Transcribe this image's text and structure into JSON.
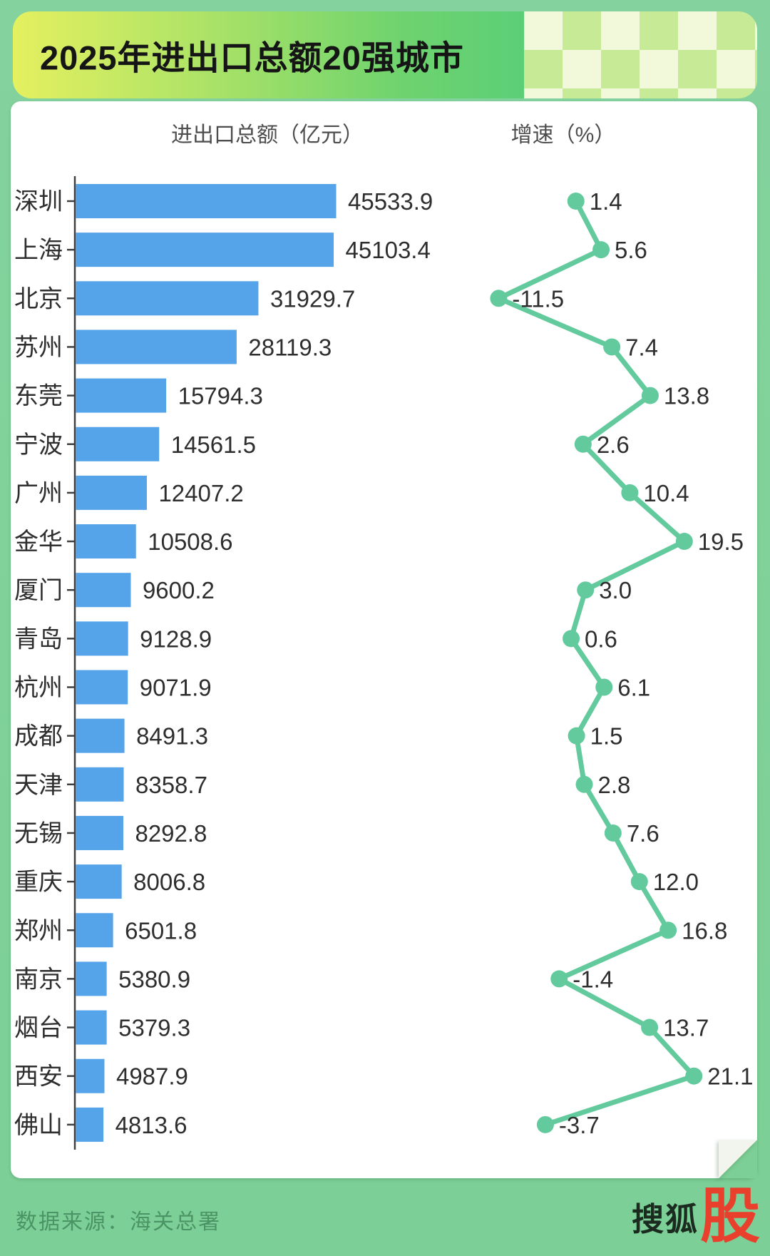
{
  "page": {
    "title": "2025年进出口总额20强城市",
    "left_column_header": "进出口总额（亿元）",
    "right_column_header": "增速（%）",
    "footer_source": "数据来源：海关总署",
    "logo_text": "搜狐",
    "logo_badge": "股"
  },
  "colors": {
    "bar": "#55a3e8",
    "line": "#63ca9d",
    "axis": "#3f3f3f",
    "label_text": "#2e2e2e",
    "page_background": "#7fd199",
    "logo_red": "#e8402c"
  },
  "chart_data": {
    "type": "bar",
    "subtype": "horizontal bar with aligned line chart of growth rates",
    "title": "2025年进出口总额20强城市",
    "source": "数据来源：海关总署",
    "categories": [
      "深圳",
      "上海",
      "北京",
      "苏州",
      "东莞",
      "宁波",
      "广州",
      "金华",
      "厦门",
      "青岛",
      "杭州",
      "成都",
      "天津",
      "无锡",
      "重庆",
      "郑州",
      "南京",
      "烟台",
      "西安",
      "佛山"
    ],
    "series": [
      {
        "name": "进出口总额（亿元）",
        "type": "bar",
        "values": [
          45533.9,
          45103.4,
          31929.7,
          28119.3,
          15794.3,
          14561.5,
          12407.2,
          10508.6,
          9600.2,
          9128.9,
          9071.9,
          8491.3,
          8358.7,
          8292.8,
          8006.8,
          6501.8,
          5380.9,
          5379.3,
          4987.9,
          4813.6
        ]
      },
      {
        "name": "增速（%）",
        "type": "line",
        "values": [
          1.4,
          5.6,
          -11.5,
          7.4,
          13.8,
          2.6,
          10.4,
          19.5,
          3.0,
          0.6,
          6.1,
          1.5,
          2.8,
          7.6,
          12.0,
          16.8,
          -1.4,
          13.7,
          21.1,
          -3.7
        ],
        "labels": [
          "1.4",
          "5.6",
          "-11.5",
          "7.4",
          "13.8",
          "2.6",
          "10.4",
          "19.5",
          "3.0",
          "0.6",
          "6.1",
          "1.5",
          "2.8",
          "7.6",
          "12.0",
          "16.8",
          "-1.4",
          "13.7",
          "21.1",
          "-3.7"
        ]
      }
    ],
    "bar_xlim": [
      0,
      47000
    ],
    "line_xlim": [
      -13,
      23
    ],
    "grid": false,
    "legend": "none"
  }
}
